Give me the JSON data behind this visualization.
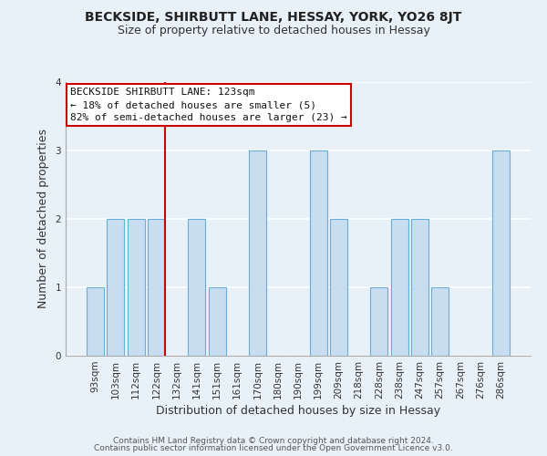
{
  "title": "BECKSIDE, SHIRBUTT LANE, HESSAY, YORK, YO26 8JT",
  "subtitle": "Size of property relative to detached houses in Hessay",
  "xlabel": "Distribution of detached houses by size in Hessay",
  "ylabel": "Number of detached properties",
  "categories": [
    "93sqm",
    "103sqm",
    "112sqm",
    "122sqm",
    "132sqm",
    "141sqm",
    "151sqm",
    "161sqm",
    "170sqm",
    "180sqm",
    "190sqm",
    "199sqm",
    "209sqm",
    "218sqm",
    "228sqm",
    "238sqm",
    "247sqm",
    "257sqm",
    "267sqm",
    "276sqm",
    "286sqm"
  ],
  "values": [
    1,
    2,
    2,
    2,
    0,
    2,
    1,
    0,
    3,
    0,
    0,
    3,
    2,
    0,
    1,
    2,
    2,
    1,
    0,
    0,
    3
  ],
  "bar_color": "#c8ddf0",
  "bar_edge_color": "#6aaed6",
  "bg_color": "#e8f0f8",
  "grid_color": "#ffffff",
  "ylim": [
    0,
    4
  ],
  "yticks": [
    0,
    1,
    2,
    3,
    4
  ],
  "red_line_index": 3,
  "annotation_text": "BECKSIDE SHIRBUTT LANE: 123sqm\n← 18% of detached houses are smaller (5)\n82% of semi-detached houses are larger (23) →",
  "annotation_box_facecolor": "#ffffff",
  "annotation_box_edgecolor": "#cc0000",
  "footer_line1": "Contains HM Land Registry data © Crown copyright and database right 2024.",
  "footer_line2": "Contains public sector information licensed under the Open Government Licence v3.0.",
  "title_fontsize": 10,
  "subtitle_fontsize": 9,
  "axis_label_fontsize": 9,
  "tick_fontsize": 7.5,
  "annotation_fontsize": 8,
  "footer_fontsize": 6.5
}
